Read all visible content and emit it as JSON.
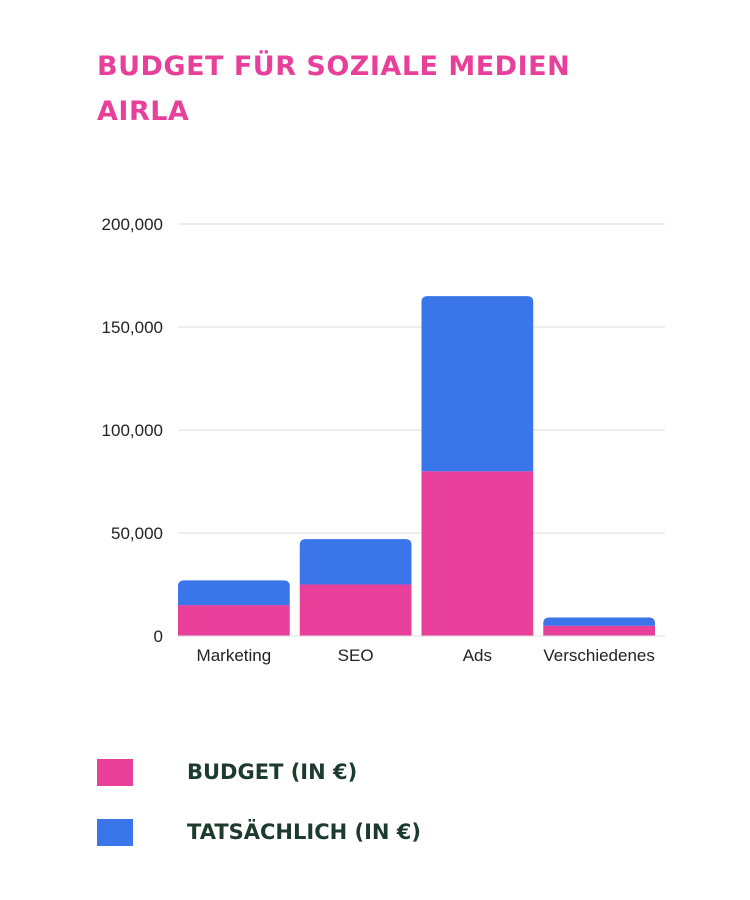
{
  "chart_data": {
    "type": "bar",
    "stacked": true,
    "title": [
      "BUDGET FÜR SOZIALE MEDIEN",
      "AIRLA"
    ],
    "categories": [
      "Marketing",
      "SEO",
      "Ads",
      "Verschiedenes"
    ],
    "series": [
      {
        "name": "BUDGET (IN €)",
        "color": "#e8409a",
        "values": [
          15000,
          25000,
          80000,
          5000
        ]
      },
      {
        "name": "TATSÄCHLICH (IN €)",
        "color": "#3b75ea",
        "values": [
          12000,
          22000,
          85000,
          4000
        ]
      }
    ],
    "ylim": [
      0,
      200000
    ],
    "yticks": [
      0,
      50000,
      100000,
      150000,
      200000
    ],
    "ytick_labels": [
      "0",
      "50,000",
      "100,000",
      "150,000",
      "200,000"
    ],
    "grid": true,
    "legend_position": "bottom-left"
  }
}
